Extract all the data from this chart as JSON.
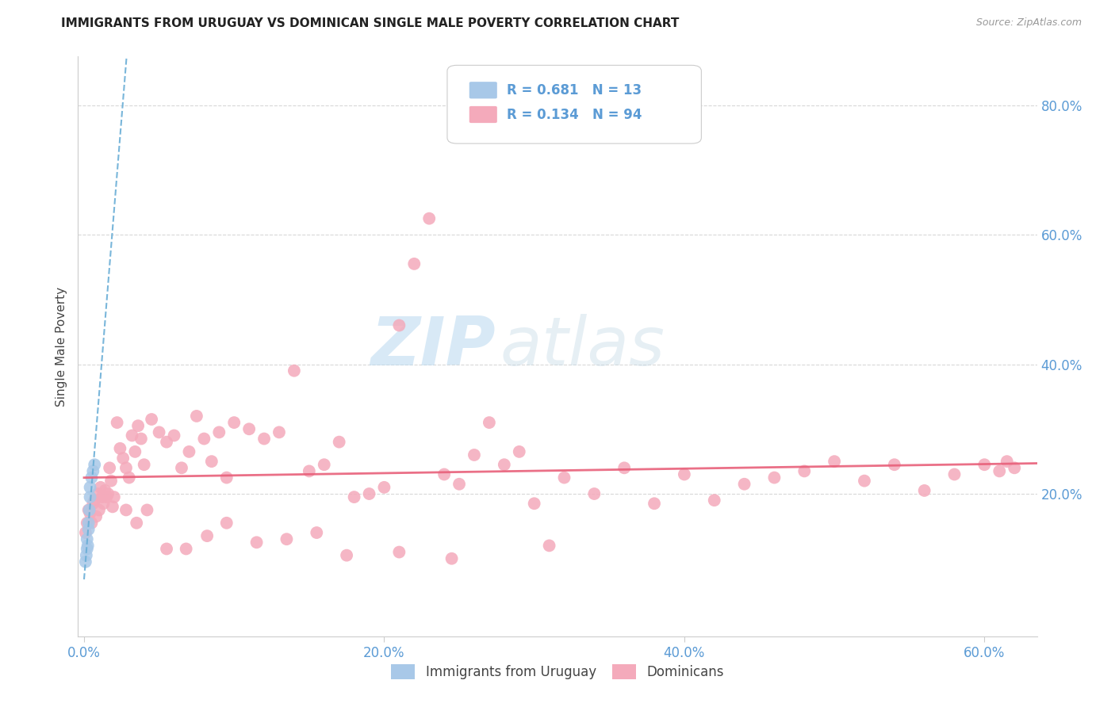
{
  "title": "IMMIGRANTS FROM URUGUAY VS DOMINICAN SINGLE MALE POVERTY CORRELATION CHART",
  "source": "Source: ZipAtlas.com",
  "ylabel_label": "Single Male Poverty",
  "x_tick_labels": [
    "0.0%",
    "20.0%",
    "40.0%",
    "60.0%"
  ],
  "x_tick_values": [
    0.0,
    0.2,
    0.4,
    0.6
  ],
  "y_tick_labels": [
    "20.0%",
    "40.0%",
    "60.0%",
    "80.0%"
  ],
  "y_tick_values": [
    0.2,
    0.4,
    0.6,
    0.8
  ],
  "xlim": [
    -0.004,
    0.635
  ],
  "ylim": [
    -0.02,
    0.875
  ],
  "legend_blue_r": "R = 0.681",
  "legend_blue_n": "N = 13",
  "legend_pink_r": "R = 0.134",
  "legend_pink_n": "N = 94",
  "legend_label_blue": "Immigrants from Uruguay",
  "legend_label_pink": "Dominicans",
  "watermark_zip": "ZIP",
  "watermark_atlas": "atlas",
  "blue_scatter_color": "#a8c8e8",
  "pink_scatter_color": "#f4aabb",
  "blue_line_color": "#6aaed6",
  "pink_line_color": "#e8607a",
  "title_color": "#222222",
  "axis_label_color": "#444444",
  "tick_color": "#5b9bd5",
  "grid_color": "#d8d8d8",
  "legend_r_n_color": "#5b9bd5",
  "uruguay_x": [
    0.001,
    0.0015,
    0.002,
    0.002,
    0.0025,
    0.003,
    0.003,
    0.0035,
    0.004,
    0.004,
    0.005,
    0.006,
    0.007
  ],
  "uruguay_y": [
    0.095,
    0.105,
    0.115,
    0.13,
    0.12,
    0.145,
    0.155,
    0.175,
    0.195,
    0.21,
    0.225,
    0.235,
    0.245
  ],
  "dominican_x": [
    0.001,
    0.002,
    0.003,
    0.004,
    0.005,
    0.006,
    0.007,
    0.008,
    0.009,
    0.01,
    0.011,
    0.012,
    0.013,
    0.014,
    0.015,
    0.016,
    0.017,
    0.018,
    0.019,
    0.02,
    0.022,
    0.024,
    0.026,
    0.028,
    0.03,
    0.032,
    0.034,
    0.036,
    0.038,
    0.04,
    0.045,
    0.05,
    0.055,
    0.06,
    0.065,
    0.07,
    0.075,
    0.08,
    0.085,
    0.09,
    0.095,
    0.1,
    0.11,
    0.12,
    0.13,
    0.14,
    0.15,
    0.16,
    0.17,
    0.18,
    0.19,
    0.2,
    0.21,
    0.22,
    0.23,
    0.24,
    0.25,
    0.26,
    0.27,
    0.28,
    0.29,
    0.3,
    0.32,
    0.34,
    0.36,
    0.38,
    0.4,
    0.42,
    0.44,
    0.46,
    0.48,
    0.5,
    0.52,
    0.54,
    0.56,
    0.58,
    0.6,
    0.61,
    0.615,
    0.62,
    0.028,
    0.035,
    0.042,
    0.055,
    0.068,
    0.082,
    0.095,
    0.115,
    0.135,
    0.155,
    0.175,
    0.21,
    0.245,
    0.31
  ],
  "dominican_y": [
    0.14,
    0.155,
    0.175,
    0.17,
    0.155,
    0.185,
    0.19,
    0.165,
    0.2,
    0.175,
    0.21,
    0.195,
    0.185,
    0.205,
    0.195,
    0.2,
    0.24,
    0.22,
    0.18,
    0.195,
    0.31,
    0.27,
    0.255,
    0.24,
    0.225,
    0.29,
    0.265,
    0.305,
    0.285,
    0.245,
    0.315,
    0.295,
    0.28,
    0.29,
    0.24,
    0.265,
    0.32,
    0.285,
    0.25,
    0.295,
    0.225,
    0.31,
    0.3,
    0.285,
    0.295,
    0.39,
    0.235,
    0.245,
    0.28,
    0.195,
    0.2,
    0.21,
    0.46,
    0.555,
    0.625,
    0.23,
    0.215,
    0.26,
    0.31,
    0.245,
    0.265,
    0.185,
    0.225,
    0.2,
    0.24,
    0.185,
    0.23,
    0.19,
    0.215,
    0.225,
    0.235,
    0.25,
    0.22,
    0.245,
    0.205,
    0.23,
    0.245,
    0.235,
    0.25,
    0.24,
    0.175,
    0.155,
    0.175,
    0.115,
    0.115,
    0.135,
    0.155,
    0.125,
    0.13,
    0.14,
    0.105,
    0.11,
    0.1,
    0.12
  ]
}
